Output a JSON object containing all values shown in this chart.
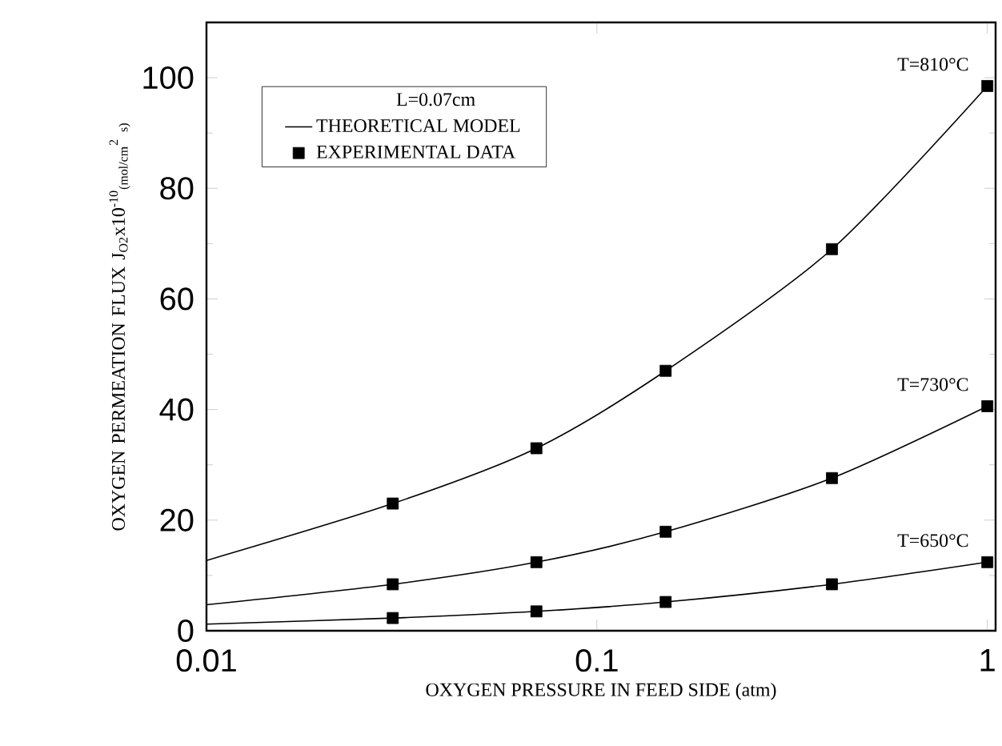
{
  "chart_data": {
    "type": "line",
    "xlabel": "OXYGEN PRESSURE IN FEED SIDE (atm)",
    "ylabel": "OXYGEN PERMEATION FLUX J$_{O2}$x10$^{-10}$$_{(mol/cm}$$^{2}$$_{ s)}$",
    "legend_title": "L=0.07cm",
    "legend": "top left",
    "log": "x",
    "xlim": [
      0.01,
      1.05
    ],
    "xticks": [
      0.01,
      0.1,
      1
    ],
    "ylim": [
      0,
      110
    ],
    "yticks": [
      0,
      20,
      40,
      60,
      80,
      100
    ],
    "series": [
      {
        "name": "THEORETICAL MODEL",
        "color": "#000000",
        "marker": "none",
        "x": [
          0.01,
          0.03,
          0.07,
          0.15,
          0.4,
          1
        ],
        "values": [
          12.7,
          23,
          33,
          47,
          69,
          98.5
        ]
      },
      {
        "name": "EXPERIMENTAL DATA",
        "type": "scatter",
        "color": "#000000",
        "marker": "square",
        "x": [
          0.03,
          0.07,
          0.15,
          0.4,
          1
        ],
        "values": [
          23,
          33,
          47,
          69,
          98.5
        ]
      },
      {
        "color": "#000000",
        "marker": "none",
        "x": [
          0.01,
          0.03,
          0.07,
          0.15,
          0.4,
          1
        ],
        "values": [
          4.7,
          8.4,
          12.4,
          17.9,
          27.6,
          40.6
        ]
      },
      {
        "type": "scatter",
        "color": "#000000",
        "marker": "square",
        "x": [
          0.03,
          0.07,
          0.15,
          0.4,
          1
        ],
        "values": [
          8.4,
          12.4,
          17.9,
          27.6,
          40.6
        ]
      },
      {
        "color": "#000000",
        "marker": "none",
        "x": [
          0.01,
          0.03,
          0.07,
          0.15,
          0.4,
          1
        ],
        "values": [
          1.2,
          2.3,
          3.5,
          5.2,
          8.4,
          12.4
        ]
      },
      {
        "type": "scatter",
        "color": "#000000",
        "marker": "square",
        "x": [
          0.03,
          0.07,
          0.15,
          0.4,
          1
        ],
        "values": [
          2.3,
          3.5,
          5.2,
          8.4,
          12.4
        ]
      }
    ],
    "annotations": [
      "T=810°C",
      "T=730°C",
      "T=650°C"
    ]
  }
}
